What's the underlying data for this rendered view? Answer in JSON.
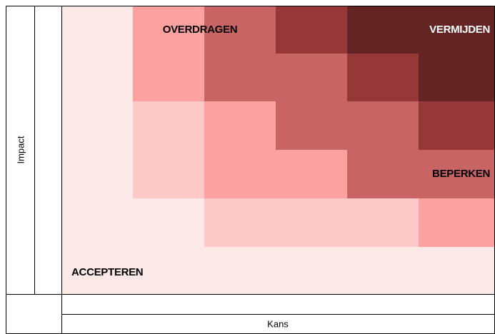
{
  "axes": {
    "y": "Impact",
    "x": "Kans"
  },
  "zones": {
    "transfer": "OVERDRAGEN",
    "avoid": "VERMIJDEN",
    "reduce": "BEPERKEN",
    "accept": "ACCEPTEREN"
  }
}
